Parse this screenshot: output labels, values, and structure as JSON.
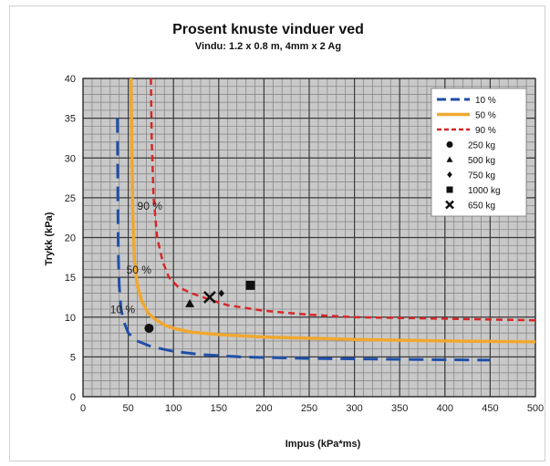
{
  "chart_data": {
    "type": "line",
    "title": "Prosent knuste vinduer ved",
    "subtitle": "Vindu: 1.2 x 0.8 m, 4mm x 2 Ag",
    "xlabel": "Impus (kPa*ms)",
    "ylabel": "Trykk (kPa)",
    "xlim": [
      0,
      500
    ],
    "ylim": [
      0,
      40
    ],
    "xticks": [
      0,
      50,
      100,
      150,
      200,
      250,
      300,
      350,
      400,
      450,
      500
    ],
    "yticks": [
      0,
      5,
      10,
      15,
      20,
      25,
      30,
      35,
      40
    ],
    "grid": true,
    "legend_position": "top-right",
    "series": [
      {
        "name": "10 %",
        "style": "dashed",
        "color": "#1f4fa8",
        "x": [
          38,
          38.5,
          39,
          40,
          42,
          45,
          50,
          60,
          75,
          100,
          130,
          175,
          250,
          350,
          450
        ],
        "y": [
          35,
          25,
          18,
          14,
          11,
          9.5,
          8,
          7,
          6.3,
          5.7,
          5.3,
          5.0,
          4.8,
          4.7,
          4.6
        ]
      },
      {
        "name": "50 %",
        "style": "solid",
        "color": "#f0a830",
        "x": [
          53,
          54,
          55,
          57,
          60,
          65,
          72,
          80,
          90,
          100,
          120,
          150,
          200,
          300,
          400,
          500
        ],
        "y": [
          40,
          30,
          23,
          17,
          14,
          12,
          10.5,
          9.7,
          9.0,
          8.6,
          8.1,
          7.8,
          7.5,
          7.2,
          7.0,
          6.9
        ]
      },
      {
        "name": "90 %",
        "style": "dashed",
        "color": "#d62728",
        "x": [
          75,
          76,
          78,
          82,
          88,
          95,
          105,
          120,
          140,
          160,
          200,
          250,
          300,
          400,
          500
        ],
        "y": [
          40,
          32,
          25,
          20,
          17,
          15,
          13.8,
          13,
          12.2,
          11.5,
          10.8,
          10.3,
          10.0,
          9.8,
          9.6
        ]
      }
    ],
    "points": [
      {
        "name": "250 kg",
        "marker": "circle",
        "x": 73,
        "y": 8.6
      },
      {
        "name": "500 kg",
        "marker": "triangle",
        "x": 118,
        "y": 11.7
      },
      {
        "name": "750 kg",
        "marker": "diamond",
        "x": 153,
        "y": 13
      },
      {
        "name": "1000 kg",
        "marker": "square",
        "x": 185,
        "y": 14
      },
      {
        "name": "650 kg",
        "marker": "x",
        "x": 140,
        "y": 12.5
      }
    ],
    "annotations": [
      {
        "text": "90 %",
        "x": 60,
        "y": 23.5
      },
      {
        "text": "50 %",
        "x": 48,
        "y": 15.5
      },
      {
        "text": "10 %",
        "x": 30,
        "y": 10.5
      }
    ]
  }
}
